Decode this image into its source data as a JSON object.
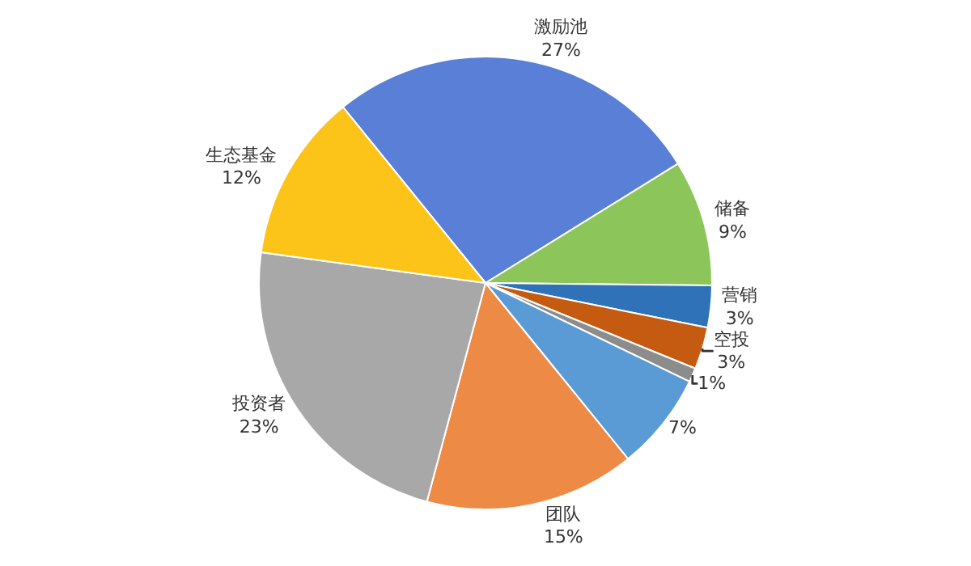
{
  "chart_data": {
    "type": "pie",
    "categories": [
      "激励池",
      "储备",
      "营销",
      "空投",
      null,
      null,
      "团队",
      "投资者",
      "生态基金"
    ],
    "values": [
      27,
      9,
      3,
      3,
      1,
      7,
      15,
      23,
      12
    ],
    "value_labels": [
      "27%",
      "9%",
      "3%",
      "3%",
      "1%",
      "7%",
      "15%",
      "23%",
      "12%"
    ],
    "colors": [
      "#5a7fd6",
      "#8cc65a",
      "#2f72b8",
      "#c55a11",
      "#8c8c8c",
      "#5b9bd5",
      "#ed8a45",
      "#a8a8a8",
      "#fcc419"
    ],
    "legend": false
  }
}
